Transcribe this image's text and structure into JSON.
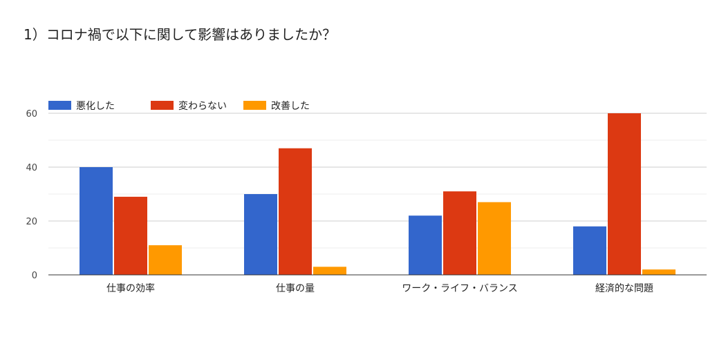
{
  "chart_data": {
    "type": "bar",
    "title": "1）コロナ禍で以下に関して影響はありましたか？",
    "xlabel": "",
    "ylabel": "",
    "categories": [
      "仕事の効率",
      "仕事の量",
      "ワーク・ライフ・バランス",
      "経済的な問題"
    ],
    "series": [
      {
        "name": "悪化した",
        "color": "#3366cc",
        "values": [
          40,
          30,
          22,
          18
        ]
      },
      {
        "name": "変わらない",
        "color": "#dc3912",
        "values": [
          29,
          47,
          31,
          60
        ]
      },
      {
        "name": "改善した",
        "color": "#ff9900",
        "values": [
          11,
          3,
          27,
          2
        ]
      }
    ],
    "ylim": [
      0,
      60
    ],
    "yticks": [
      0,
      20,
      40,
      60
    ],
    "grid": true,
    "legend_position": "top-left"
  }
}
